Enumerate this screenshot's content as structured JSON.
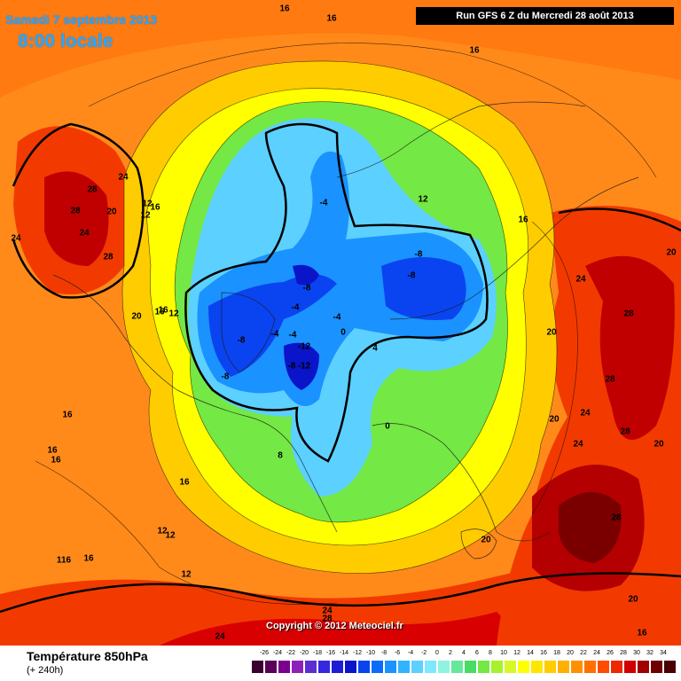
{
  "header": {
    "date_label": "Samedi 7 septembre 2013",
    "time_label": "8:00 locale",
    "run_label": "Run GFS 6 Z du Mercredi 28 août 2013"
  },
  "copyright": "Copyright © 2012 Meteociel.fr",
  "footer": {
    "variable_title": "Température 850hPa",
    "forecast_offset": "(+ 240h)"
  },
  "legend": {
    "values": [
      "-26",
      "-24",
      "-22",
      "-20",
      "-18",
      "-16",
      "-14",
      "-12",
      "-10",
      "-8",
      "-6",
      "-4",
      "-2",
      "0",
      "2",
      "4",
      "6",
      "8",
      "10",
      "12",
      "14",
      "16",
      "18",
      "20",
      "22",
      "24",
      "26",
      "28",
      "30",
      "32",
      "34"
    ],
    "colors": [
      "#3a0030",
      "#5a0058",
      "#7a0090",
      "#8e22b8",
      "#5a2fd0",
      "#3528e0",
      "#1e1ed8",
      "#0a14c8",
      "#0a44f0",
      "#0a6cf8",
      "#1a92ff",
      "#30b4ff",
      "#5cd0ff",
      "#7ee8ff",
      "#8ef4e0",
      "#66e89a",
      "#4ada66",
      "#74e844",
      "#a6f02e",
      "#d6f828",
      "#ffff00",
      "#ffe600",
      "#ffcc00",
      "#ffb000",
      "#ff9000",
      "#ff7000",
      "#ff4c00",
      "#f02800",
      "#d00000",
      "#a00000",
      "#700000",
      "#4a0000"
    ]
  },
  "isotherm_labels": [
    {
      "id": "l1",
      "text": "16"
    },
    {
      "id": "l2",
      "text": "16"
    },
    {
      "id": "l3",
      "text": "16"
    },
    {
      "id": "l4",
      "text": "24"
    },
    {
      "id": "l5",
      "text": "28"
    },
    {
      "id": "l6",
      "text": "28"
    },
    {
      "id": "l7",
      "text": "20"
    },
    {
      "id": "l8",
      "text": "24"
    },
    {
      "id": "l9",
      "text": "24"
    },
    {
      "id": "l10",
      "text": "28"
    },
    {
      "id": "l11",
      "text": "12"
    },
    {
      "id": "l12",
      "text": "16"
    },
    {
      "id": "l13",
      "text": "16"
    },
    {
      "id": "l14",
      "text": "12"
    },
    {
      "id": "l15",
      "text": "-4"
    },
    {
      "id": "l16",
      "text": "12"
    },
    {
      "id": "l17",
      "text": "16"
    },
    {
      "id": "l18",
      "text": "-8"
    },
    {
      "id": "l19",
      "text": "-8"
    },
    {
      "id": "l20",
      "text": "-8"
    },
    {
      "id": "l21",
      "text": "24"
    },
    {
      "id": "l22",
      "text": "20"
    },
    {
      "id": "l23",
      "text": "20"
    },
    {
      "id": "l24",
      "text": "28"
    },
    {
      "id": "l25",
      "text": "16"
    },
    {
      "id": "l26",
      "text": "12"
    },
    {
      "id": "l27",
      "text": "-4"
    },
    {
      "id": "l28",
      "text": "-4"
    },
    {
      "id": "l29",
      "text": "-8"
    },
    {
      "id": "l30",
      "text": "-4"
    },
    {
      "id": "l31",
      "text": "-4"
    },
    {
      "id": "l32",
      "text": "-12"
    },
    {
      "id": "l33",
      "text": "0"
    },
    {
      "id": "l34",
      "text": "4"
    },
    {
      "id": "l35",
      "text": "-8"
    },
    {
      "id": "l36",
      "text": "-8"
    },
    {
      "id": "l37",
      "text": "-12"
    },
    {
      "id": "l38",
      "text": "20"
    },
    {
      "id": "l39",
      "text": "28"
    },
    {
      "id": "l40",
      "text": "24"
    },
    {
      "id": "l41",
      "text": "28"
    },
    {
      "id": "l42",
      "text": "20"
    },
    {
      "id": "l43",
      "text": "24"
    },
    {
      "id": "l44",
      "text": "20"
    },
    {
      "id": "l45",
      "text": "16"
    },
    {
      "id": "l46",
      "text": "8"
    },
    {
      "id": "l47",
      "text": "0"
    },
    {
      "id": "l48",
      "text": "16"
    },
    {
      "id": "l49",
      "text": "16"
    },
    {
      "id": "l50",
      "text": "16"
    },
    {
      "id": "l51",
      "text": "28"
    },
    {
      "id": "l52",
      "text": "12"
    },
    {
      "id": "l53",
      "text": "12"
    },
    {
      "id": "l54",
      "text": "116"
    },
    {
      "id": "l55",
      "text": "16"
    },
    {
      "id": "l56",
      "text": "20"
    },
    {
      "id": "l57",
      "text": "12"
    },
    {
      "id": "l58",
      "text": "20"
    },
    {
      "id": "l59",
      "text": "24"
    },
    {
      "id": "l60",
      "text": "28"
    },
    {
      "id": "l61",
      "text": "24"
    },
    {
      "id": "l62",
      "text": "16"
    }
  ]
}
